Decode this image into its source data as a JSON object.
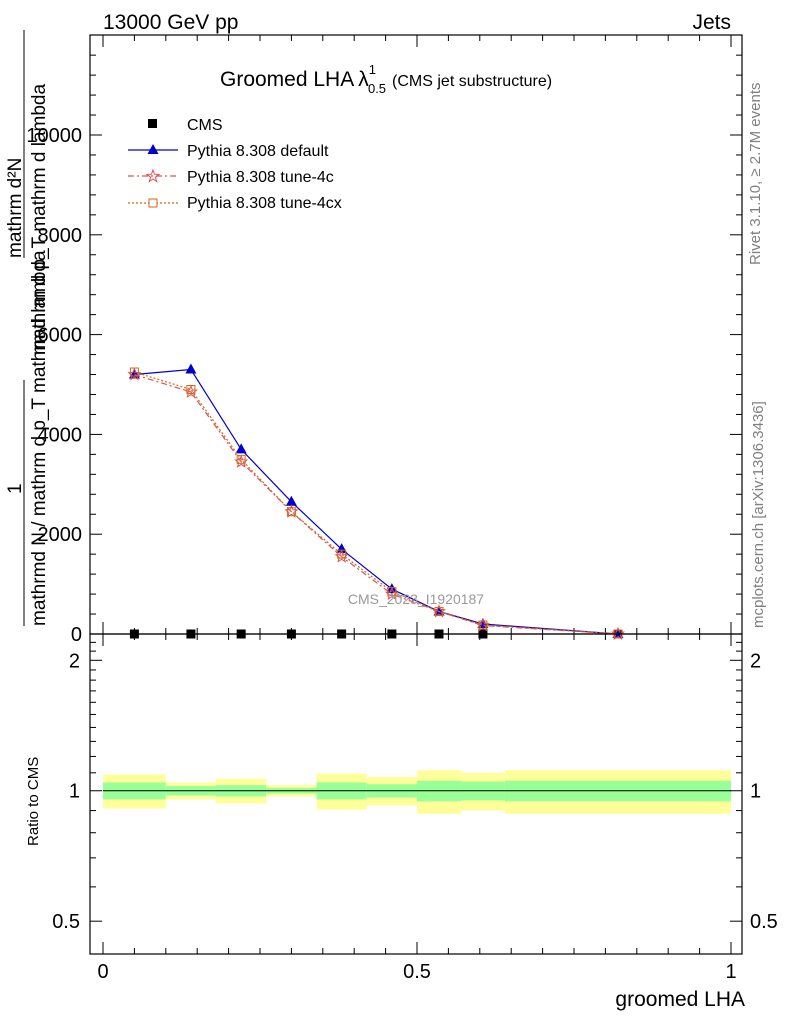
{
  "header": {
    "left": "13000 GeV pp",
    "right": "Jets"
  },
  "side_text": {
    "rivet": "Rivet 3.1.10, ≥ 2.7M events",
    "mcplots": "mcplots.cern.ch [arXiv:1306.3436]"
  },
  "watermark": "CMS_2023_I1920187",
  "title": {
    "main": "Groomed LHA",
    "lambda": "λ",
    "sup": "1",
    "sub": "0.5",
    "note": "(CMS jet substructure)"
  },
  "ylabel_parts": {
    "numerator": "mathrm d²N",
    "middle": "mathrm d p_T mathrm d lambda",
    "one": "1",
    "denominator": "mathrmd N / mathrm d p_T mathrmd lambda"
  },
  "ratio_ylabel": "Ratio to CMS",
  "xlabel": "groomed LHA",
  "legend": [
    {
      "name": "CMS",
      "marker": "filled-square",
      "color": "#000000"
    },
    {
      "name": "Pythia 8.308 default",
      "marker": "filled-triangle",
      "color": "#0000cc"
    },
    {
      "name": "Pythia 8.308 tune-4c",
      "marker": "open-star",
      "color": "#e05050"
    },
    {
      "name": "Pythia 8.308 tune-4cx",
      "marker": "open-square",
      "color": "#d2691e"
    }
  ],
  "chart_data": {
    "type": "line",
    "x": [
      0.05,
      0.14,
      0.22,
      0.3,
      0.38,
      0.46,
      0.535,
      0.605,
      0.82
    ],
    "xlim": [
      -0.02,
      1.02
    ],
    "ylim": [
      0,
      12000
    ],
    "series": [
      {
        "name": "CMS",
        "values": [
          0,
          0,
          0,
          0,
          0,
          0,
          0,
          0,
          0
        ]
      },
      {
        "name": "Pythia 8.308 default",
        "values": [
          5200,
          5300,
          3700,
          2650,
          1700,
          900,
          450,
          200,
          0
        ]
      },
      {
        "name": "Pythia 8.308 tune-4c",
        "values": [
          5200,
          4850,
          3450,
          2450,
          1550,
          800,
          450,
          170,
          0
        ]
      },
      {
        "name": "Pythia 8.308 tune-4cx",
        "values": [
          5250,
          4900,
          3500,
          2450,
          1600,
          850,
          450,
          180,
          0
        ]
      }
    ],
    "yticks": [
      0,
      2000,
      4000,
      6000,
      8000,
      10000
    ],
    "ytick_labels": [
      "0",
      "2000",
      "4000",
      "6000",
      "8000",
      "10000"
    ],
    "ratio": {
      "ylim": [
        0.42,
        2.3
      ],
      "yticks": [
        0.5,
        1,
        2
      ],
      "ytick_labels": [
        "0.5",
        "1",
        "2"
      ],
      "xticks": [
        0,
        0.5,
        1
      ],
      "xtick_labels": [
        "0",
        "0.5",
        "1"
      ],
      "bands": [
        {
          "x0": 0.0,
          "x1": 0.1,
          "inner": [
            0.955,
            1.045
          ],
          "outer": [
            0.91,
            1.09
          ]
        },
        {
          "x0": 0.1,
          "x1": 0.18,
          "inner": [
            0.975,
            1.025
          ],
          "outer": [
            0.955,
            1.045
          ]
        },
        {
          "x0": 0.18,
          "x1": 0.26,
          "inner": [
            0.97,
            1.03
          ],
          "outer": [
            0.935,
            1.065
          ]
        },
        {
          "x0": 0.26,
          "x1": 0.34,
          "inner": [
            0.985,
            1.015
          ],
          "outer": [
            0.97,
            1.03
          ]
        },
        {
          "x0": 0.34,
          "x1": 0.42,
          "inner": [
            0.955,
            1.045
          ],
          "outer": [
            0.905,
            1.095
          ]
        },
        {
          "x0": 0.42,
          "x1": 0.5,
          "inner": [
            0.965,
            1.035
          ],
          "outer": [
            0.925,
            1.075
          ]
        },
        {
          "x0": 0.5,
          "x1": 0.57,
          "inner": [
            0.945,
            1.055
          ],
          "outer": [
            0.885,
            1.115
          ]
        },
        {
          "x0": 0.57,
          "x1": 0.64,
          "inner": [
            0.95,
            1.05
          ],
          "outer": [
            0.9,
            1.1
          ]
        },
        {
          "x0": 0.64,
          "x1": 1.0,
          "inner": [
            0.945,
            1.055
          ],
          "outer": [
            0.885,
            1.115
          ]
        }
      ]
    }
  }
}
